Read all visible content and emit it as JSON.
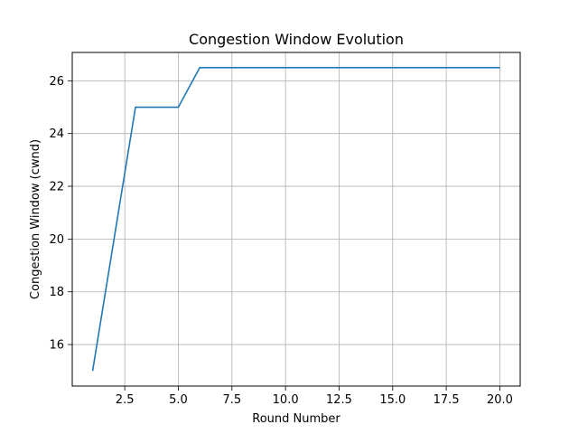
{
  "chart_data": {
    "type": "line",
    "title": "Congestion Window Evolution",
    "xlabel": "Round Number",
    "ylabel": "Congestion Window (cwnd)",
    "xlim": [
      0.05,
      20.95
    ],
    "ylim": [
      14.425,
      27.075
    ],
    "xticks": [
      2.5,
      5.0,
      7.5,
      10.0,
      12.5,
      15.0,
      17.5,
      20.0
    ],
    "xtick_labels": [
      "2.5",
      "5.0",
      "7.5",
      "10.0",
      "12.5",
      "15.0",
      "17.5",
      "20.0"
    ],
    "yticks": [
      16,
      18,
      20,
      22,
      24,
      26
    ],
    "ytick_labels": [
      "16",
      "18",
      "20",
      "22",
      "24",
      "26"
    ],
    "grid": true,
    "legend": "none",
    "line_color": "#1f77b4",
    "grid_color": "#b0b0b0",
    "series": [
      {
        "x": [
          1,
          2,
          3,
          4,
          5,
          6,
          7,
          8,
          9,
          10,
          11,
          12,
          13,
          14,
          15,
          16,
          17,
          18,
          19,
          20
        ],
        "y": [
          15,
          20,
          25,
          25,
          25,
          26.5,
          26.5,
          26.5,
          26.5,
          26.5,
          26.5,
          26.5,
          26.5,
          26.5,
          26.5,
          26.5,
          26.5,
          26.5,
          26.5,
          26.5
        ]
      }
    ]
  }
}
